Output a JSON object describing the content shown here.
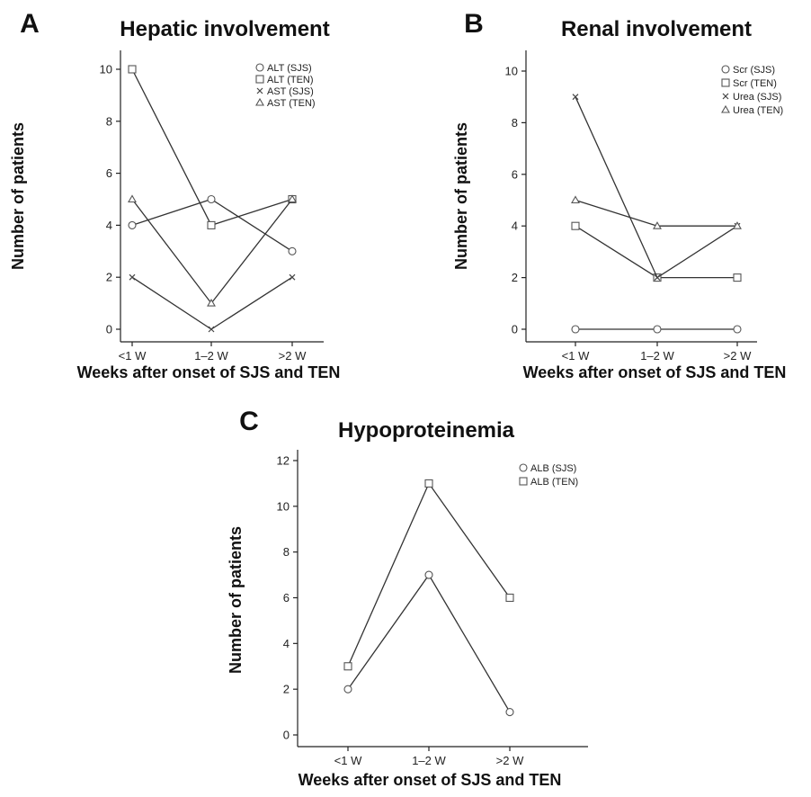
{
  "chart_data": [
    {
      "panel": "A",
      "type": "line",
      "title": "Hepatic involvement",
      "xlabel": "Weeks after onset of SJS and TEN",
      "ylabel": "Number of patients",
      "categories": [
        "<1 W",
        "1–2 W",
        ">2 W"
      ],
      "ylim": [
        0,
        10
      ],
      "yticks": [
        0,
        2,
        4,
        6,
        8,
        10
      ],
      "grid": false,
      "legend_position": "top-right",
      "series": [
        {
          "name": "ALT (SJS)",
          "marker": "circle",
          "values": [
            4,
            5,
            3
          ]
        },
        {
          "name": "ALT (TEN)",
          "marker": "square",
          "values": [
            10,
            4,
            5
          ]
        },
        {
          "name": "AST (SJS)",
          "marker": "x",
          "values": [
            2,
            0,
            2
          ]
        },
        {
          "name": "AST (TEN)",
          "marker": "triangle",
          "values": [
            5,
            1,
            5
          ]
        }
      ]
    },
    {
      "panel": "B",
      "type": "line",
      "title": "Renal involvement",
      "xlabel": "Weeks after onset of SJS and TEN",
      "ylabel": "Number of patients",
      "categories": [
        "<1 W",
        "1–2 W",
        ">2 W"
      ],
      "ylim": [
        0,
        10
      ],
      "yticks": [
        0,
        2,
        4,
        6,
        8,
        10
      ],
      "grid": false,
      "legend_position": "top-right",
      "series": [
        {
          "name": "Scr (SJS)",
          "marker": "circle",
          "values": [
            0,
            0,
            0
          ]
        },
        {
          "name": "Scr (TEN)",
          "marker": "square",
          "values": [
            4,
            2,
            2
          ]
        },
        {
          "name": "Urea (SJS)",
          "marker": "x",
          "values": [
            9,
            2,
            4
          ]
        },
        {
          "name": "Urea (TEN)",
          "marker": "triangle",
          "values": [
            5,
            4,
            4
          ]
        }
      ]
    },
    {
      "panel": "C",
      "type": "line",
      "title": "Hypoproteinemia",
      "xlabel": "Weeks after onset of SJS and TEN",
      "ylabel": "Number of patients",
      "categories": [
        "<1 W",
        "1–2 W",
        ">2 W"
      ],
      "ylim": [
        0,
        12
      ],
      "yticks": [
        0,
        2,
        4,
        6,
        8,
        10,
        12
      ],
      "grid": false,
      "legend_position": "top-right",
      "series": [
        {
          "name": "ALB (SJS)",
          "marker": "circle",
          "values": [
            2,
            7,
            1
          ]
        },
        {
          "name": "ALB (TEN)",
          "marker": "square",
          "values": [
            3,
            11,
            6
          ]
        }
      ]
    }
  ]
}
